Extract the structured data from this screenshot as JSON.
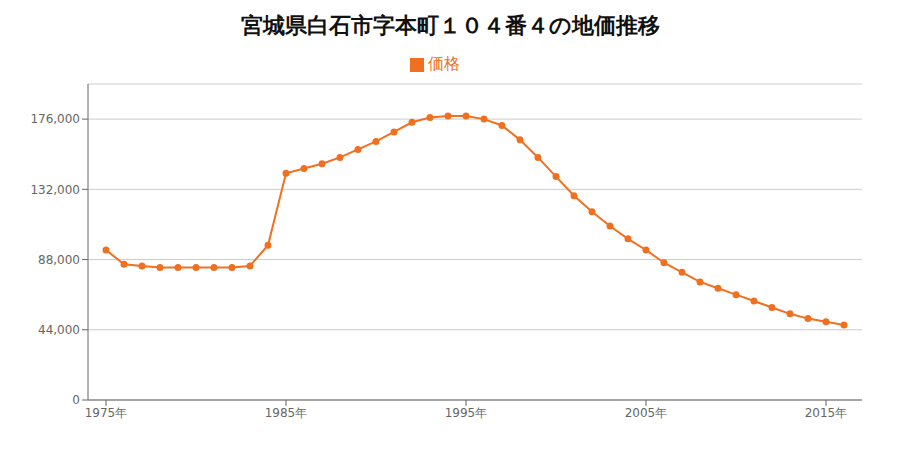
{
  "chart_data": {
    "type": "line",
    "title": "宮城県白石市字本町１０４番４の地価推移",
    "x": [
      1975,
      1976,
      1977,
      1978,
      1979,
      1980,
      1981,
      1982,
      1983,
      1984,
      1985,
      1986,
      1987,
      1988,
      1989,
      1990,
      1991,
      1992,
      1993,
      1994,
      1995,
      1996,
      1997,
      1998,
      1999,
      2000,
      2001,
      2002,
      2003,
      2004,
      2005,
      2006,
      2007,
      2008,
      2009,
      2010,
      2011,
      2012,
      2013,
      2014,
      2015,
      2016
    ],
    "series": [
      {
        "name": "価格",
        "color": "#f07020",
        "marker": "circle",
        "values": [
          94000,
          85000,
          84000,
          83000,
          83000,
          83000,
          83000,
          83000,
          84000,
          97000,
          142000,
          145000,
          148000,
          152000,
          157000,
          162000,
          168000,
          174000,
          177000,
          178000,
          178000,
          176000,
          172000,
          163000,
          152000,
          140000,
          128000,
          118000,
          109000,
          101000,
          94000,
          86000,
          80000,
          74000,
          70000,
          66000,
          62000,
          58000,
          54000,
          51000,
          49000,
          47000
        ]
      }
    ],
    "xlim": [
      1974,
      2017
    ],
    "xticks": [
      {
        "value": 1975,
        "label": "1975年"
      },
      {
        "value": 1985,
        "label": "1985年"
      },
      {
        "value": 1995,
        "label": "1995年"
      },
      {
        "value": 2005,
        "label": "2005年"
      },
      {
        "value": 2015,
        "label": "2015年"
      }
    ],
    "ylim": [
      0,
      198000
    ],
    "yticks": [
      0,
      {
        "value": 44000,
        "label": "44,000"
      },
      {
        "value": 88000,
        "label": "88,000"
      },
      {
        "value": 132000,
        "label": "132,000"
      },
      {
        "value": 176000,
        "label": "176,000"
      }
    ],
    "grid": true,
    "legend": "top"
  }
}
